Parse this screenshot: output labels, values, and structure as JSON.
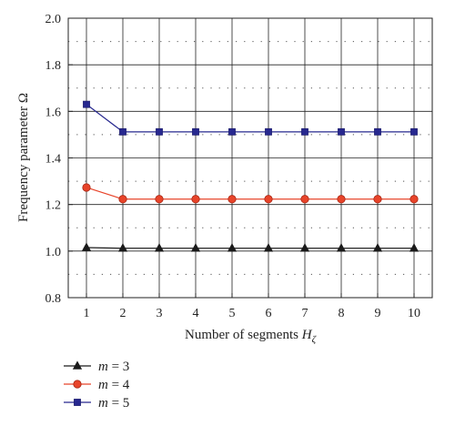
{
  "chart_data": {
    "type": "line",
    "title": "",
    "xlabel": "Number of segments",
    "xlabel_symbol": "H",
    "xlabel_sub": "ζ",
    "ylabel": "Frequency parameter Ω",
    "x": [
      1,
      2,
      3,
      4,
      5,
      6,
      7,
      8,
      9,
      10
    ],
    "xlim": [
      0.5,
      10.5
    ],
    "ylim": [
      0.8,
      2.0
    ],
    "yticks": [
      "0.8",
      "1.0",
      "1.2",
      "1.4",
      "1.6",
      "1.8",
      "2.0"
    ],
    "xticks": [
      "1",
      "2",
      "3",
      "4",
      "5",
      "6",
      "7",
      "8",
      "9",
      "10"
    ],
    "grid": true,
    "legend_position": "bottom-left",
    "series": [
      {
        "name": "m = 3",
        "var": "m",
        "rhs": "= 3",
        "color": "#1a1a1a",
        "marker": "triangle",
        "values": [
          1.015,
          1.012,
          1.012,
          1.012,
          1.012,
          1.012,
          1.012,
          1.012,
          1.012,
          1.012
        ]
      },
      {
        "name": "m = 4",
        "var": "m",
        "rhs": "= 4",
        "color": "#e8442a",
        "marker": "circle",
        "values": [
          1.273,
          1.223,
          1.223,
          1.223,
          1.223,
          1.223,
          1.223,
          1.223,
          1.223,
          1.223
        ]
      },
      {
        "name": "m = 5",
        "var": "m",
        "rhs": "= 5",
        "color": "#27288f",
        "marker": "square",
        "values": [
          1.63,
          1.512,
          1.512,
          1.512,
          1.512,
          1.512,
          1.512,
          1.512,
          1.512,
          1.512
        ]
      }
    ]
  }
}
